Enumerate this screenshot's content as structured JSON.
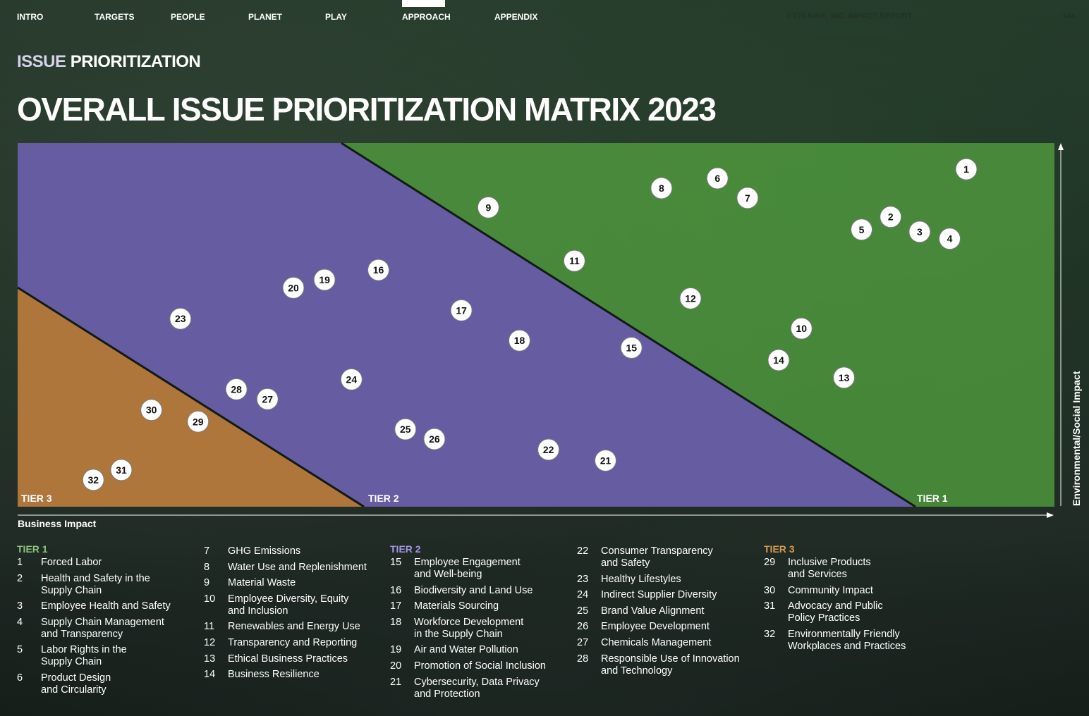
{
  "nav": {
    "items": [
      "INTRO",
      "TARGETS",
      "PEOPLE",
      "PLANET",
      "PLAY",
      "APPROACH",
      "APPENDIX"
    ],
    "active": "APPROACH",
    "report_title": "FY23 NIKE, INC. IMPACT REPORT",
    "page": "144"
  },
  "section": {
    "accent": "ISSUE",
    "rest": "PRIORITIZATION"
  },
  "title": "OVERALL ISSUE PRIORITIZATION MATRIX 2023",
  "colors": {
    "tier1": "#4f9a3e",
    "tier2": "#6a55b3",
    "tier3": "#b97a2c",
    "tier1_heading": "#8fc27a",
    "tier2_heading": "#a594e2",
    "tier3_heading": "#d89a55"
  },
  "chart_data": {
    "type": "scatter",
    "xlabel": "Business Impact",
    "ylabel": "Environmental/Social Impact",
    "xlim": [
      0,
      1
    ],
    "ylim": [
      0,
      1
    ],
    "zones": [
      {
        "name": "TIER 3",
        "tier": 3
      },
      {
        "name": "TIER 2",
        "tier": 2
      },
      {
        "name": "TIER 1",
        "tier": 1
      }
    ],
    "points": [
      {
        "label": "1",
        "x": 0.915,
        "y": 0.928
      },
      {
        "label": "2",
        "x": 0.842,
        "y": 0.797
      },
      {
        "label": "3",
        "x": 0.87,
        "y": 0.756
      },
      {
        "label": "4",
        "x": 0.899,
        "y": 0.737
      },
      {
        "label": "5",
        "x": 0.814,
        "y": 0.762
      },
      {
        "label": "6",
        "x": 0.675,
        "y": 0.903
      },
      {
        "label": "7",
        "x": 0.704,
        "y": 0.849
      },
      {
        "label": "8",
        "x": 0.621,
        "y": 0.876
      },
      {
        "label": "9",
        "x": 0.454,
        "y": 0.823
      },
      {
        "label": "10",
        "x": 0.756,
        "y": 0.49
      },
      {
        "label": "11",
        "x": 0.537,
        "y": 0.676
      },
      {
        "label": "12",
        "x": 0.649,
        "y": 0.573
      },
      {
        "label": "13",
        "x": 0.797,
        "y": 0.355
      },
      {
        "label": "14",
        "x": 0.734,
        "y": 0.403
      },
      {
        "label": "15",
        "x": 0.592,
        "y": 0.437
      },
      {
        "label": "16",
        "x": 0.348,
        "y": 0.651
      },
      {
        "label": "17",
        "x": 0.428,
        "y": 0.54
      },
      {
        "label": "18",
        "x": 0.484,
        "y": 0.457
      },
      {
        "label": "19",
        "x": 0.296,
        "y": 0.624
      },
      {
        "label": "20",
        "x": 0.266,
        "y": 0.602
      },
      {
        "label": "21",
        "x": 0.567,
        "y": 0.127
      },
      {
        "label": "22",
        "x": 0.512,
        "y": 0.157
      },
      {
        "label": "23",
        "x": 0.157,
        "y": 0.517
      },
      {
        "label": "24",
        "x": 0.322,
        "y": 0.35
      },
      {
        "label": "25",
        "x": 0.374,
        "y": 0.213
      },
      {
        "label": "26",
        "x": 0.402,
        "y": 0.186
      },
      {
        "label": "27",
        "x": 0.241,
        "y": 0.296
      },
      {
        "label": "28",
        "x": 0.211,
        "y": 0.323
      },
      {
        "label": "29",
        "x": 0.174,
        "y": 0.234
      },
      {
        "label": "30",
        "x": 0.129,
        "y": 0.266
      },
      {
        "label": "31",
        "x": 0.1,
        "y": 0.101
      },
      {
        "label": "32",
        "x": 0.073,
        "y": 0.074
      }
    ]
  },
  "legend": {
    "tier1": {
      "heading": "TIER 1",
      "col_a": [
        {
          "num": "1",
          "text": "Forced Labor"
        },
        {
          "num": "2",
          "text": "Health and Safety in the\nSupply Chain"
        },
        {
          "num": "3",
          "text": "Employee Health and Safety"
        },
        {
          "num": "4",
          "text": "Supply Chain Management\nand Transparency"
        },
        {
          "num": "5",
          "text": "Labor Rights in the\nSupply Chain"
        },
        {
          "num": "6",
          "text": "Product Design\nand Circularity"
        }
      ],
      "col_b": [
        {
          "num": "7",
          "text": "GHG Emissions"
        },
        {
          "num": "8",
          "text": "Water Use and Replenishment"
        },
        {
          "num": "9",
          "text": "Material Waste"
        },
        {
          "num": "10",
          "text": "Employee Diversity, Equity\nand Inclusion"
        },
        {
          "num": "11",
          "text": "Renewables and Energy Use"
        },
        {
          "num": "12",
          "text": "Transparency and Reporting"
        },
        {
          "num": "13",
          "text": "Ethical Business Practices"
        },
        {
          "num": "14",
          "text": "Business Resilience"
        }
      ]
    },
    "tier2": {
      "heading": "TIER 2",
      "col_a": [
        {
          "num": "15",
          "text": "Employee Engagement\nand Well-being"
        },
        {
          "num": "16",
          "text": "Biodiversity and Land Use"
        },
        {
          "num": "17",
          "text": "Materials Sourcing"
        },
        {
          "num": "18",
          "text": "Workforce Development\nin the Supply Chain"
        },
        {
          "num": "19",
          "text": "Air and Water Pollution"
        },
        {
          "num": "20",
          "text": "Promotion of Social Inclusion"
        },
        {
          "num": "21",
          "text": "Cybersecurity, Data Privacy\nand Protection"
        }
      ],
      "col_b": [
        {
          "num": "22",
          "text": "Consumer Transparency\nand Safety"
        },
        {
          "num": "23",
          "text": "Healthy Lifestyles"
        },
        {
          "num": "24",
          "text": "Indirect Supplier Diversity"
        },
        {
          "num": "25",
          "text": "Brand Value Alignment"
        },
        {
          "num": "26",
          "text": "Employee Development"
        },
        {
          "num": "27",
          "text": "Chemicals Management"
        },
        {
          "num": "28",
          "text": "Responsible Use of Innovation\nand Technology"
        }
      ]
    },
    "tier3": {
      "heading": "TIER 3",
      "col_a": [
        {
          "num": "29",
          "text": "Inclusive Products\nand Services"
        },
        {
          "num": "30",
          "text": "Community Impact"
        },
        {
          "num": "31",
          "text": "Advocacy and Public\nPolicy Practices"
        },
        {
          "num": "32",
          "text": "Environmentally Friendly\nWorkplaces and Practices"
        }
      ]
    }
  }
}
